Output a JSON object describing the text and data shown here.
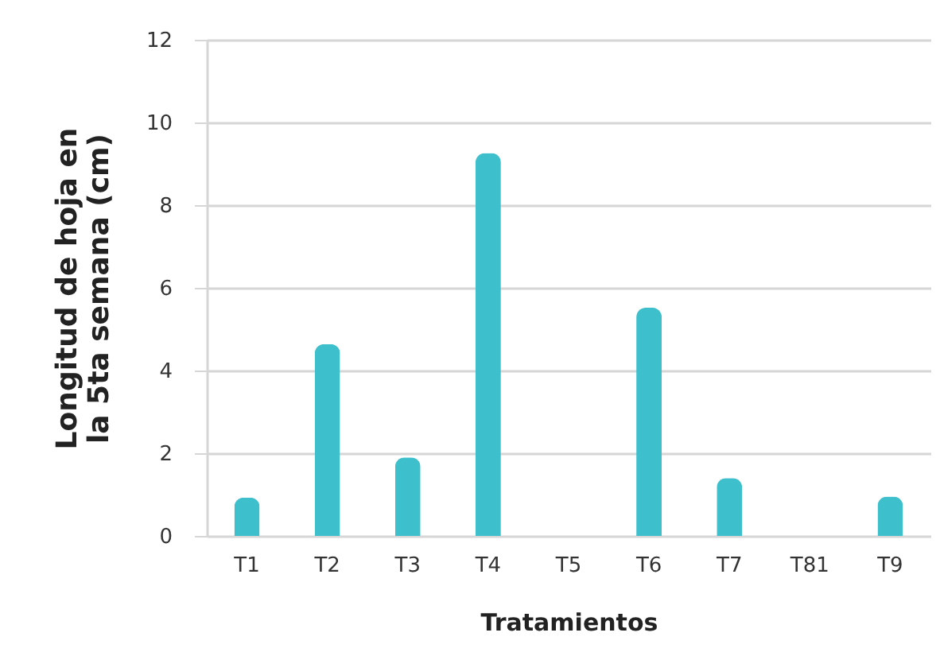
{
  "chart_data": {
    "type": "bar",
    "xlabel": "Tratamientos",
    "ylabel": "Longitud de hoja en la 5ta semana (cm)",
    "categories": [
      "T1",
      "T2",
      "T3",
      "T4",
      "T5",
      "T6",
      "T7",
      "T81",
      "T9"
    ],
    "values": [
      0.93,
      4.64,
      1.9,
      9.26,
      0,
      5.52,
      1.4,
      0,
      0.95
    ],
    "color": "#3ec0cc",
    "ylim": [
      0,
      12
    ],
    "yticks": [
      0,
      2,
      4,
      6,
      8,
      10,
      12
    ],
    "grid": "y"
  }
}
